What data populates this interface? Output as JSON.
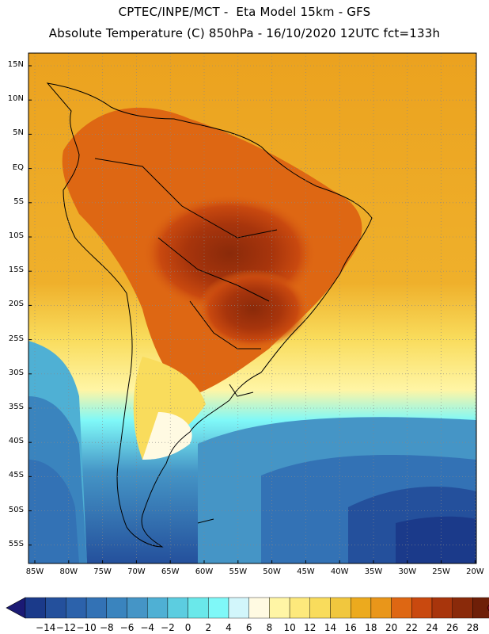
{
  "header": {
    "line1": "CPTEC/INPE/MCT -  Eta Model 15km - GFS",
    "line2": "Absolute Temperature (C) 850hPa - 16/10/2020 12UTC fct=133h"
  },
  "map": {
    "lat_labels": [
      "15N",
      "10N",
      "5N",
      "EQ",
      "5S",
      "10S",
      "15S",
      "20S",
      "25S",
      "30S",
      "35S",
      "40S",
      "45S",
      "50S",
      "55S"
    ],
    "lon_labels": [
      "85W",
      "80W",
      "75W",
      "70W",
      "65W",
      "60W",
      "55W",
      "50W",
      "45W",
      "40W",
      "35W",
      "30W",
      "25W",
      "20W"
    ],
    "grid": "dotted"
  },
  "colorbar": {
    "labels": [
      "-14",
      "-12",
      "-10",
      "-8",
      "-6",
      "-4",
      "-2",
      "0",
      "2",
      "4",
      "6",
      "8",
      "10",
      "12",
      "14",
      "16",
      "18",
      "20",
      "22",
      "24",
      "26",
      "28"
    ],
    "colors": [
      "#1b3a8a",
      "#24509c",
      "#2c62ab",
      "#3372b5",
      "#3a84be",
      "#4595c6",
      "#4fb0d4",
      "#5ccde0",
      "#6ae8ea",
      "#7ff8f8",
      "#d2f6fb",
      "#fffae2",
      "#fff5a5",
      "#fde97c",
      "#f9dc5c",
      "#f1c73e",
      "#ecaa1e",
      "#e9961a",
      "#de6713",
      "#c9490f",
      "#a8350c",
      "#8a2a0a",
      "#6e1f08"
    ],
    "low_arrow": "#1b1a74",
    "high_arrow": "#8a0b1e"
  }
}
